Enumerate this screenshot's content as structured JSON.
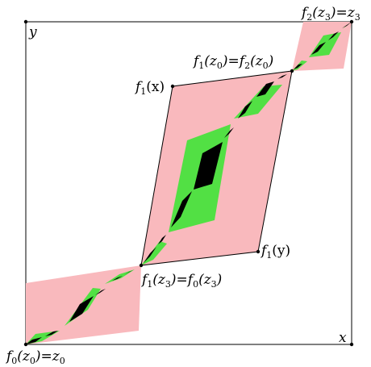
{
  "diagram": {
    "colors": {
      "outer": "#f9b9bd",
      "middle": "#52e044",
      "inner": "#000000",
      "frame": "#000000",
      "background": "#ffffff"
    },
    "corner_labels": {
      "y": "y",
      "x": "x"
    },
    "point_labels": {
      "f2_z3": {
        "f": "f",
        "sub1": "2",
        "arg": "(z",
        "sub2": "3",
        "tail": ")=z",
        "sub3": "3"
      },
      "f1_z0": {
        "f": "f",
        "sub1": "1",
        "arg": "(z",
        "sub2": "0",
        "mid": ")=f",
        "sub3": "2",
        "arg2": "(z",
        "sub4": "0",
        "tail": ")"
      },
      "f1_x": {
        "f": "f",
        "sub1": "1",
        "arg": "(x)"
      },
      "f1_y": {
        "f": "f",
        "sub1": "1",
        "arg": "(y)"
      },
      "f1_z3": {
        "f": "f",
        "sub1": "1",
        "arg": "(z",
        "sub2": "3",
        "mid": ")=f",
        "sub3": "0",
        "arg2": "(z",
        "sub4": "3",
        "tail": ")"
      },
      "f0_z0": {
        "f": "f",
        "sub1": "0",
        "arg": "(z",
        "sub2": "0",
        "tail": ")=z",
        "sub3": "0"
      }
    }
  }
}
